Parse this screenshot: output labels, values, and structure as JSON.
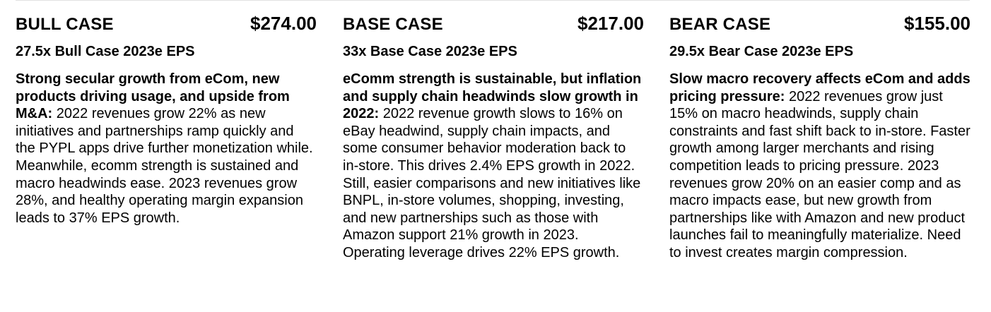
{
  "cases": [
    {
      "title": "BULL CASE",
      "price": "$274.00",
      "subtitle": "27.5x Bull Case 2023e EPS",
      "lead": "Strong secular growth from eCom, new products driving usage, and upside from M&A:",
      "text": " 2022 revenues grow 22% as new initiatives and partnerships ramp quickly and the PYPL apps drive further monetization while. Meanwhile, ecomm strength is sustained and macro headwinds ease. 2023 revenues grow 28%, and healthy operating margin expansion leads to 37% EPS growth."
    },
    {
      "title": "BASE CASE",
      "price": "$217.00",
      "subtitle": "33x Base Case 2023e EPS",
      "lead": "eComm strength is sustainable, but inflation and supply chain headwinds slow growth in 2022:",
      "text": " 2022 revenue growth slows to 16% on eBay headwind, supply chain impacts, and some consumer behavior moderation back to in-store. This drives 2.4% EPS growth in 2022. Still, easier comparisons and new initiatives like BNPL, in-store volumes, shopping, investing, and new partnerships such as those with Amazon support 21% growth in 2023. Operating leverage drives 22% EPS growth."
    },
    {
      "title": "BEAR CASE",
      "price": "$155.00",
      "subtitle": "29.5x Bear Case 2023e EPS",
      "lead": "Slow macro recovery affects eCom and adds pricing pressure:",
      "text": " 2022 revenues grow just 15% on macro headwinds, supply chain constraints and fast shift back to in-store. Faster growth among larger merchants and rising competition leads to pricing pressure. 2023 revenues grow 20% on an easier comp and as macro impacts ease, but new growth from partnerships like with Amazon and new product launches fail to meaningfully materialize. Need to invest creates margin compression."
    }
  ]
}
